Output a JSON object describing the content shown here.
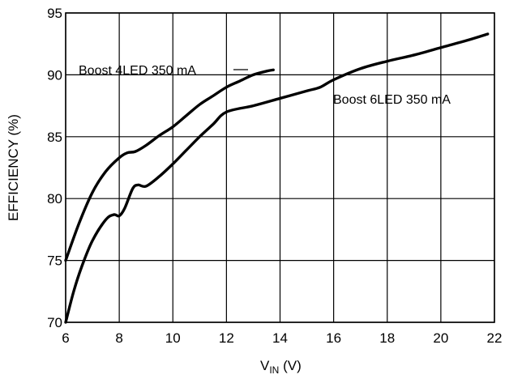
{
  "chart_data": {
    "type": "line",
    "xlabel": "V",
    "xlabel_subscript": "IN",
    "xlabel_unit": " (V)",
    "ylabel": "EFFICIENCY (%)",
    "xlim": [
      6,
      22
    ],
    "ylim": [
      70,
      95
    ],
    "x_ticks": [
      "6",
      "8",
      "10",
      "12",
      "14",
      "16",
      "18",
      "20",
      "22"
    ],
    "y_ticks": [
      "70",
      "75",
      "80",
      "85",
      "90",
      "95"
    ],
    "grid": true,
    "series": [
      {
        "name": "Boost 4LED 350 mA",
        "x": [
          6.0,
          6.5,
          7.0,
          7.5,
          8.0,
          8.3,
          8.6,
          9.0,
          9.5,
          10.0,
          10.5,
          11.0,
          11.5,
          12.0,
          12.5,
          13.0,
          13.5,
          13.75
        ],
        "y": [
          75.0,
          78.0,
          80.5,
          82.2,
          83.3,
          83.7,
          83.8,
          84.3,
          85.1,
          85.8,
          86.7,
          87.6,
          88.3,
          89.0,
          89.5,
          90.0,
          90.3,
          90.4
        ]
      },
      {
        "name": "Boost 6LED 350 mA",
        "x": [
          6.0,
          6.3,
          6.6,
          7.0,
          7.5,
          7.8,
          8.0,
          8.2,
          8.5,
          8.7,
          9.0,
          9.5,
          10.0,
          10.5,
          11.0,
          11.5,
          12.0,
          13.0,
          14.0,
          15.0,
          15.5,
          16.0,
          17.0,
          18.0,
          19.0,
          20.0,
          21.0,
          21.75
        ],
        "y": [
          70.0,
          72.5,
          74.5,
          76.6,
          78.3,
          78.7,
          78.6,
          79.2,
          80.8,
          81.1,
          81.0,
          81.8,
          82.8,
          83.9,
          85.0,
          86.0,
          87.0,
          87.5,
          88.1,
          88.7,
          89.0,
          89.6,
          90.5,
          91.1,
          91.6,
          92.2,
          92.8,
          93.3
        ]
      }
    ],
    "annotations": [
      {
        "text": "Boost 4LED 350 mA",
        "series": 0
      },
      {
        "text": "Boost 6LED 350 mA",
        "series": 1
      }
    ]
  }
}
